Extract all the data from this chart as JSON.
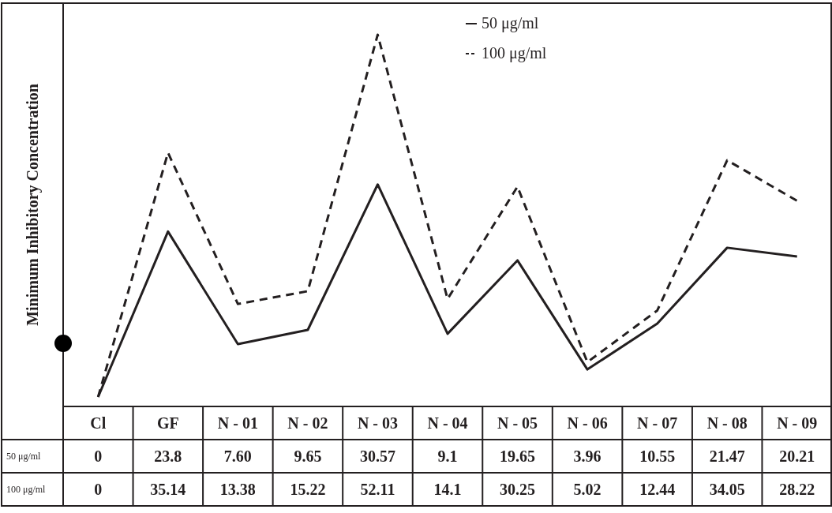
{
  "chart_data": {
    "type": "line",
    "ylabel": "Minimum Inhibitory Concentration",
    "categories": [
      "Cl",
      "GF",
      "N - 01",
      "N - 02",
      "N - 03",
      "N - 04",
      "N - 05",
      "N - 06",
      "N - 07",
      "N - 08",
      "N - 09"
    ],
    "tick_labels": "x",
    "legend": "top",
    "marker": "none",
    "series": [
      {
        "name": "50 μg/ml",
        "color": "#231f20",
        "values": [
          0,
          23.8,
          7.6,
          9.65,
          30.57,
          9.1,
          19.65,
          3.96,
          10.55,
          21.47,
          20.21
        ],
        "value_labels": [
          "0",
          "23.8",
          "7.60",
          "9.65",
          "30.57",
          "9.1",
          "19.65",
          "3.96",
          "10.55",
          "21.47",
          "20.21"
        ]
      },
      {
        "name": "100 μg/ml",
        "color": "#231f20",
        "line_style": "dashed",
        "values": [
          0,
          35.14,
          13.38,
          15.22,
          52.11,
          14.1,
          30.25,
          5.02,
          12.44,
          34.05,
          28.22
        ],
        "value_labels": [
          "0",
          "35.14",
          "13.38",
          "15.22",
          "52.11",
          "14.1",
          "30.25",
          "5.02",
          "12.44",
          "34.05",
          "28.22"
        ]
      }
    ]
  }
}
